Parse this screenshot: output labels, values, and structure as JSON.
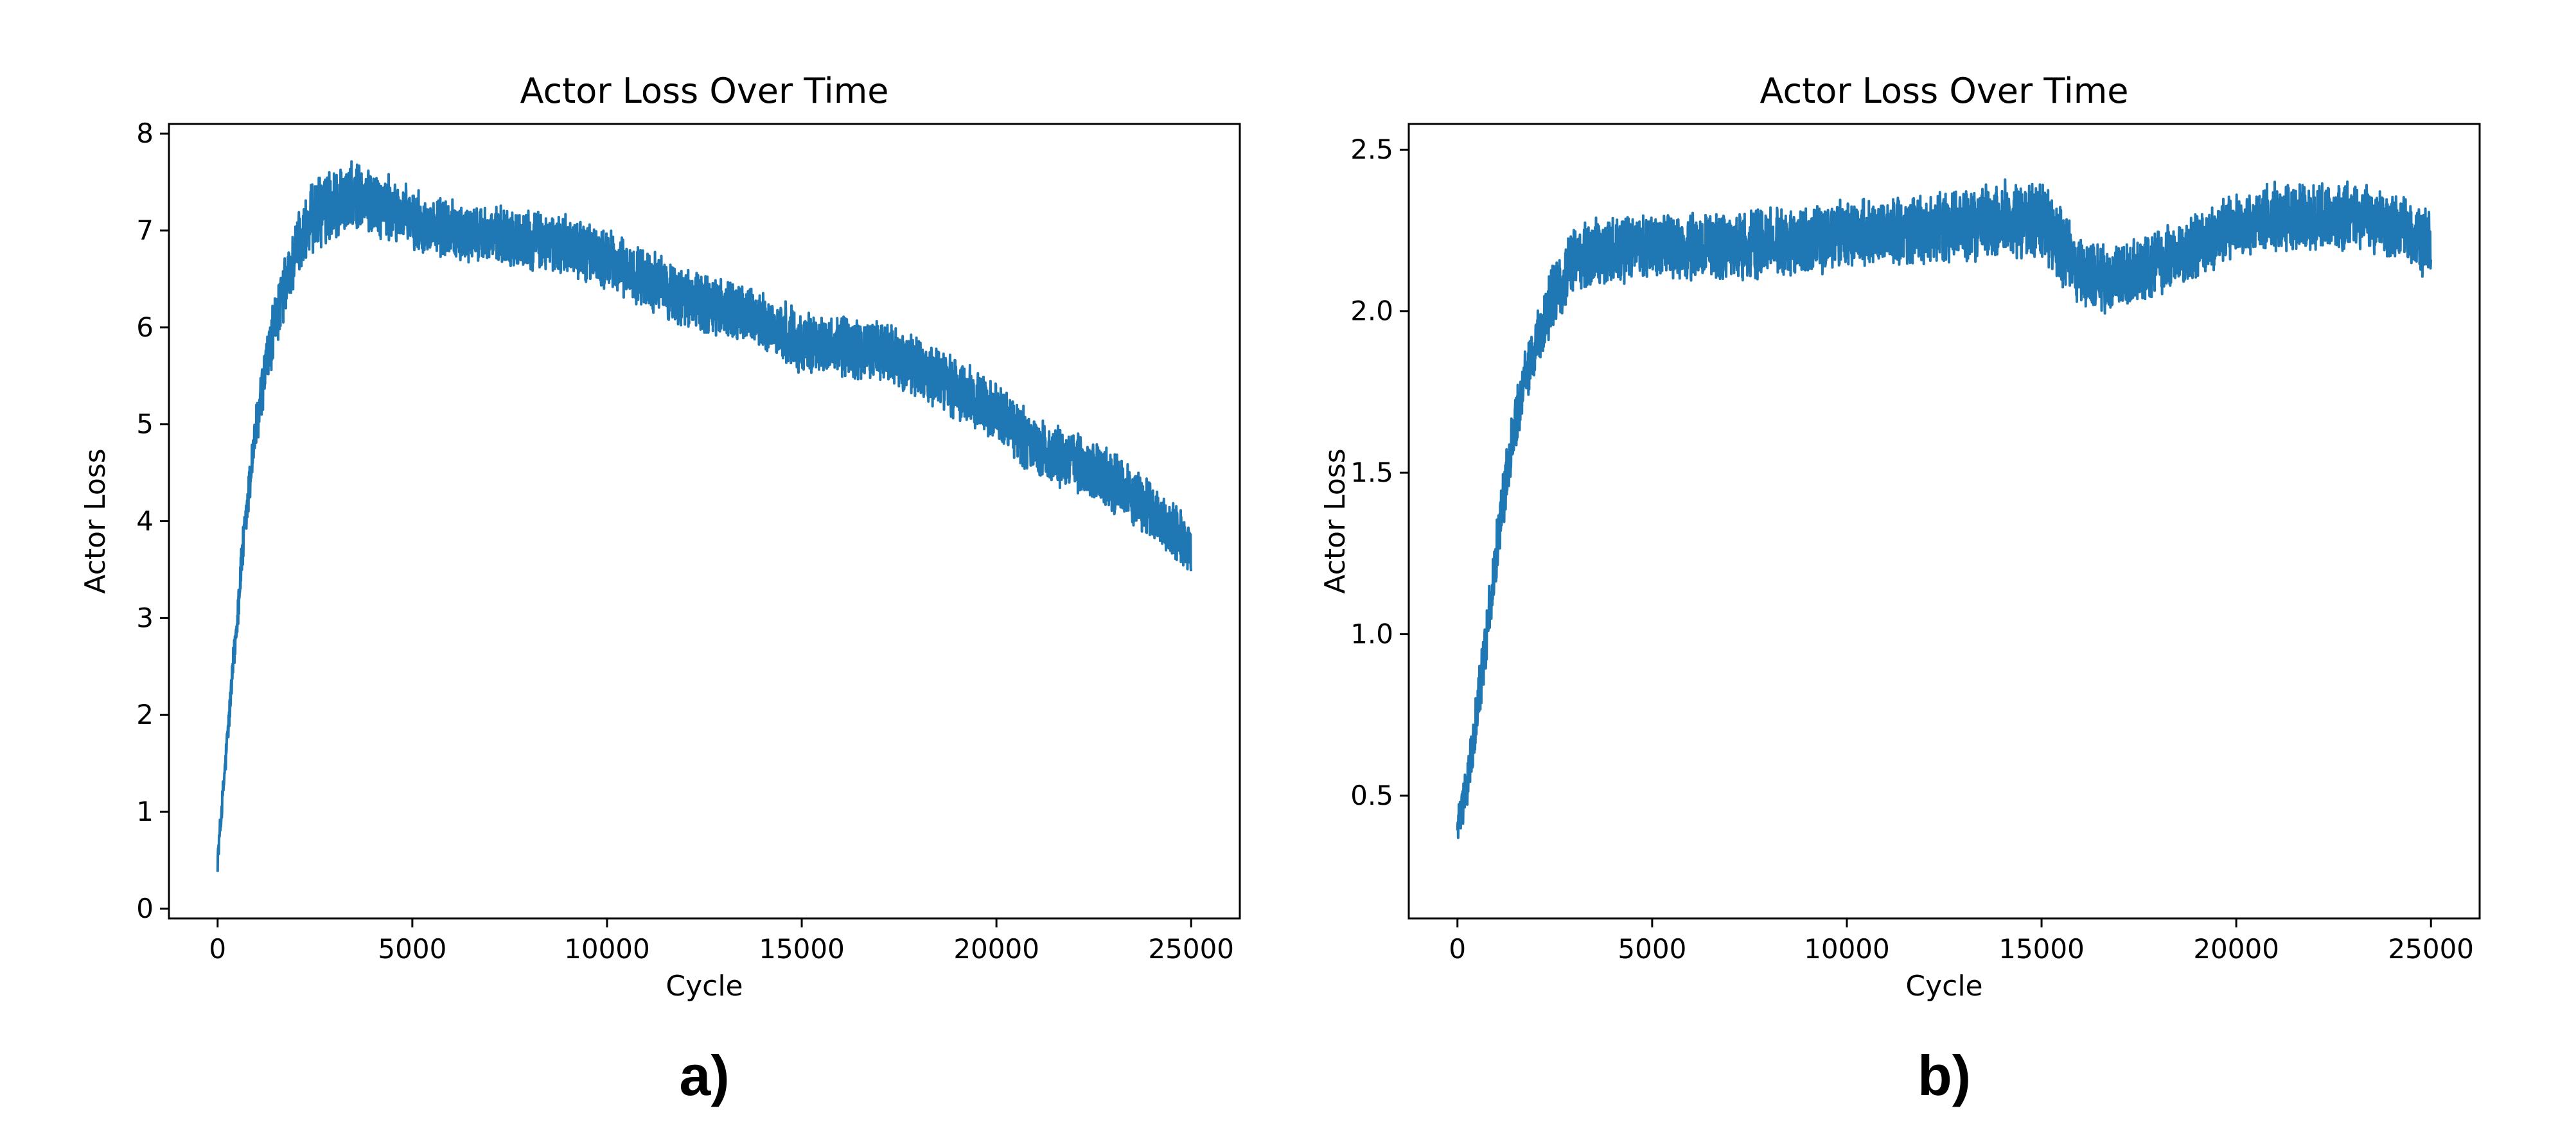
{
  "chart_data": [
    {
      "type": "line",
      "panel_label": "a)",
      "title": "Actor Loss Over Time",
      "xlabel": "Cycle",
      "ylabel": "Actor Loss",
      "xlim": [
        -1250,
        26250
      ],
      "ylim": [
        -0.1,
        8.1
      ],
      "xticks": [
        0,
        5000,
        10000,
        15000,
        20000,
        25000
      ],
      "xtick_labels": [
        "0",
        "5000",
        "10000",
        "15000",
        "20000",
        "25000"
      ],
      "yticks": [
        0,
        1,
        2,
        3,
        4,
        5,
        6,
        7,
        8
      ],
      "ytick_labels": [
        "0",
        "1",
        "2",
        "3",
        "4",
        "5",
        "6",
        "7",
        "8"
      ],
      "grid": false,
      "legend": "none",
      "color": "#1f77b4",
      "series": [
        {
          "x": [
            0,
            300,
            600,
            900,
            1200,
            1500,
            1800,
            2100,
            2500,
            3000,
            3500,
            4000,
            5000,
            6000,
            7000,
            8000,
            9000,
            10000,
            11000,
            12000,
            13000,
            14000,
            15000,
            16000,
            17000,
            18000,
            19000,
            20000,
            21000,
            22000,
            23000,
            24000,
            25000
          ],
          "y": [
            0.5,
            2.0,
            3.5,
            4.7,
            5.5,
            6.1,
            6.5,
            6.9,
            7.15,
            7.3,
            7.35,
            7.3,
            7.1,
            7.0,
            6.95,
            6.9,
            6.85,
            6.7,
            6.5,
            6.3,
            6.2,
            6.05,
            5.85,
            5.8,
            5.75,
            5.6,
            5.35,
            5.15,
            4.75,
            4.6,
            4.4,
            4.1,
            3.7
          ],
          "band": [
            0.1,
            0.15,
            0.2,
            0.22,
            0.25,
            0.27,
            0.28,
            0.3,
            0.32,
            0.32,
            0.3,
            0.3,
            0.28,
            0.27,
            0.27,
            0.27,
            0.27,
            0.27,
            0.27,
            0.27,
            0.27,
            0.27,
            0.27,
            0.27,
            0.27,
            0.27,
            0.27,
            0.27,
            0.27,
            0.27,
            0.27,
            0.25,
            0.25
          ]
        }
      ]
    },
    {
      "type": "line",
      "panel_label": "b)",
      "title": "Actor Loss Over Time",
      "xlabel": "Cycle",
      "ylabel": "Actor Loss",
      "xlim": [
        -1250,
        26250
      ],
      "ylim": [
        0.12,
        2.58
      ],
      "xticks": [
        0,
        5000,
        10000,
        15000,
        20000,
        25000
      ],
      "xtick_labels": [
        "0",
        "5000",
        "10000",
        "15000",
        "20000",
        "25000"
      ],
      "yticks": [
        0.5,
        1.0,
        1.5,
        2.0,
        2.5
      ],
      "ytick_labels": [
        "0.5",
        "1.0",
        "1.5",
        "2.0",
        "2.5"
      ],
      "grid": false,
      "legend": "none",
      "color": "#1f77b4",
      "series": [
        {
          "x": [
            0,
            200,
            500,
            800,
            1100,
            1400,
            1700,
            2000,
            2500,
            3000,
            3500,
            4000,
            5000,
            6000,
            7000,
            8000,
            9000,
            10000,
            11000,
            12000,
            13000,
            14000,
            15000,
            15500,
            16000,
            16500,
            17000,
            18000,
            19000,
            20000,
            21000,
            22000,
            23000,
            24000,
            25000
          ],
          "y": [
            0.4,
            0.5,
            0.75,
            1.05,
            1.35,
            1.6,
            1.78,
            1.9,
            2.05,
            2.15,
            2.18,
            2.19,
            2.2,
            2.2,
            2.2,
            2.21,
            2.22,
            2.24,
            2.25,
            2.25,
            2.27,
            2.29,
            2.28,
            2.2,
            2.12,
            2.1,
            2.1,
            2.15,
            2.2,
            2.27,
            2.29,
            2.3,
            2.29,
            2.27,
            2.2
          ],
          "band": [
            0.06,
            0.06,
            0.07,
            0.08,
            0.08,
            0.08,
            0.08,
            0.08,
            0.09,
            0.09,
            0.09,
            0.09,
            0.09,
            0.09,
            0.09,
            0.09,
            0.09,
            0.09,
            0.09,
            0.09,
            0.1,
            0.1,
            0.1,
            0.1,
            0.09,
            0.09,
            0.09,
            0.09,
            0.09,
            0.09,
            0.09,
            0.09,
            0.09,
            0.09,
            0.09
          ]
        }
      ]
    }
  ]
}
